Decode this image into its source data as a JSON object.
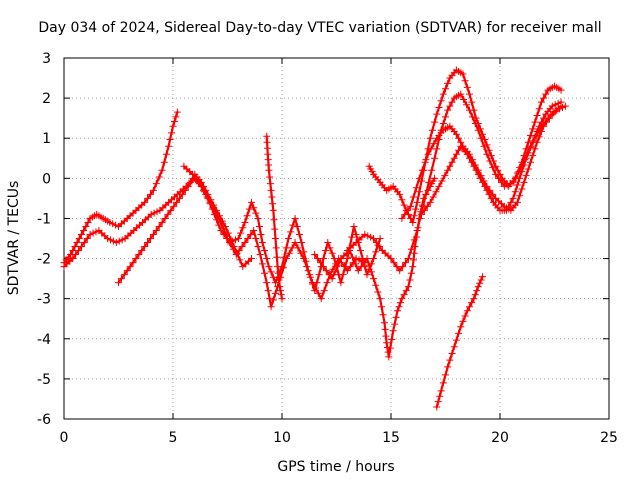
{
  "chart_data": {
    "type": "scatter",
    "title": "Day 034 of 2024, Sidereal Day-to-day VTEC variation (SDTVAR) for receiver mall",
    "xlabel": "GPS time / hours",
    "ylabel": "SDTVAR / TECUs",
    "xlim": [
      0,
      25
    ],
    "ylim": [
      -6,
      3
    ],
    "xticks": [
      "0",
      "5",
      "10",
      "15",
      "20",
      "25"
    ],
    "yticks": [
      "-6",
      "-5",
      "-4",
      "-3",
      "-2",
      "-1",
      "0",
      "1",
      "2",
      "3"
    ],
    "grid": true,
    "marker": "+",
    "color": "#ff0000",
    "series": [
      {
        "values": [
          [
            0.0,
            -2.1
          ],
          [
            0.3,
            -1.9
          ],
          [
            0.6,
            -1.6
          ],
          [
            0.9,
            -1.3
          ],
          [
            1.2,
            -1.0
          ],
          [
            1.5,
            -0.9
          ],
          [
            1.8,
            -1.0
          ],
          [
            2.1,
            -1.1
          ],
          [
            2.5,
            -1.2
          ],
          [
            2.9,
            -1.0
          ],
          [
            3.3,
            -0.8
          ],
          [
            3.7,
            -0.6
          ],
          [
            4.1,
            -0.3
          ],
          [
            4.5,
            0.2
          ],
          [
            4.8,
            0.8
          ],
          [
            5.0,
            1.3
          ],
          [
            5.2,
            1.65
          ]
        ]
      },
      {
        "values": [
          [
            0.0,
            -2.2
          ],
          [
            0.4,
            -2.0
          ],
          [
            0.8,
            -1.7
          ],
          [
            1.2,
            -1.4
          ],
          [
            1.6,
            -1.3
          ],
          [
            2.0,
            -1.5
          ],
          [
            2.4,
            -1.6
          ],
          [
            2.8,
            -1.5
          ],
          [
            3.2,
            -1.3
          ],
          [
            3.6,
            -1.1
          ],
          [
            4.0,
            -0.9
          ],
          [
            4.4,
            -0.8
          ],
          [
            4.8,
            -0.6
          ],
          [
            5.2,
            -0.4
          ],
          [
            5.6,
            -0.2
          ],
          [
            6.0,
            0.0
          ],
          [
            6.3,
            -0.2
          ],
          [
            6.6,
            -0.5
          ],
          [
            6.9,
            -0.9
          ],
          [
            7.2,
            -1.3
          ],
          [
            7.6,
            -1.6
          ],
          [
            8.0,
            -1.5
          ]
        ]
      },
      {
        "values": [
          [
            2.5,
            -2.6
          ],
          [
            2.9,
            -2.3
          ],
          [
            3.3,
            -2.0
          ],
          [
            3.7,
            -1.7
          ],
          [
            4.1,
            -1.4
          ],
          [
            4.5,
            -1.1
          ],
          [
            4.9,
            -0.8
          ],
          [
            5.3,
            -0.5
          ],
          [
            5.7,
            -0.2
          ],
          [
            6.0,
            0.1
          ],
          [
            6.3,
            -0.1
          ],
          [
            6.6,
            -0.4
          ],
          [
            7.0,
            -0.8
          ],
          [
            7.4,
            -1.2
          ],
          [
            7.8,
            -1.7
          ],
          [
            8.2,
            -2.2
          ],
          [
            8.6,
            -2.0
          ]
        ]
      },
      {
        "values": [
          [
            5.5,
            0.3
          ],
          [
            5.9,
            0.1
          ],
          [
            6.3,
            -0.2
          ],
          [
            6.7,
            -0.6
          ],
          [
            7.1,
            -1.0
          ],
          [
            7.5,
            -1.5
          ],
          [
            7.9,
            -1.9
          ],
          [
            8.3,
            -1.6
          ],
          [
            8.7,
            -1.3
          ],
          [
            9.0,
            -1.9
          ],
          [
            9.3,
            -2.6
          ],
          [
            9.5,
            -3.2
          ],
          [
            9.8,
            -2.7
          ],
          [
            10.2,
            -2.0
          ],
          [
            10.6,
            -1.6
          ],
          [
            11.0,
            -2.0
          ],
          [
            11.4,
            -2.6
          ],
          [
            11.8,
            -3.0
          ],
          [
            12.2,
            -2.4
          ],
          [
            12.6,
            -2.0
          ],
          [
            13.0,
            -2.3
          ],
          [
            13.4,
            -2.0
          ],
          [
            13.8,
            -2.1
          ]
        ]
      },
      {
        "values": [
          [
            8.0,
            -1.5
          ],
          [
            8.3,
            -1.1
          ],
          [
            8.6,
            -0.6
          ],
          [
            8.9,
            -1.0
          ],
          [
            9.1,
            -1.6
          ],
          [
            9.4,
            -2.2
          ],
          [
            9.7,
            -2.6
          ],
          [
            10.0,
            -2.2
          ],
          [
            10.3,
            -1.5
          ],
          [
            10.6,
            -1.0
          ],
          [
            10.9,
            -1.6
          ],
          [
            11.2,
            -2.3
          ],
          [
            11.5,
            -2.8
          ],
          [
            11.8,
            -2.2
          ],
          [
            12.1,
            -1.6
          ],
          [
            12.4,
            -2.0
          ],
          [
            12.7,
            -2.6
          ],
          [
            13.0,
            -2.0
          ],
          [
            13.3,
            -1.2
          ],
          [
            13.6,
            -1.8
          ],
          [
            13.9,
            -2.4
          ],
          [
            14.2,
            -2.0
          ],
          [
            14.5,
            -1.5
          ]
        ]
      },
      {
        "values": [
          [
            9.3,
            1.05
          ],
          [
            9.35,
            0.6
          ],
          [
            9.4,
            0.2
          ],
          [
            9.5,
            -0.3
          ],
          [
            9.6,
            -0.8
          ],
          [
            9.7,
            -1.5
          ],
          [
            9.8,
            -2.2
          ],
          [
            9.9,
            -2.7
          ],
          [
            10.0,
            -3.0
          ]
        ]
      },
      {
        "values": [
          [
            11.5,
            -1.9
          ],
          [
            11.9,
            -2.2
          ],
          [
            12.3,
            -2.5
          ],
          [
            12.7,
            -2.0
          ],
          [
            13.1,
            -1.8
          ],
          [
            13.5,
            -2.3
          ],
          [
            13.9,
            -2.0
          ],
          [
            14.2,
            -2.5
          ],
          [
            14.5,
            -3.0
          ],
          [
            14.7,
            -3.6
          ],
          [
            14.8,
            -4.1
          ],
          [
            14.9,
            -4.45
          ],
          [
            15.1,
            -3.8
          ],
          [
            15.3,
            -3.3
          ],
          [
            15.5,
            -3.0
          ],
          [
            15.8,
            -2.7
          ],
          [
            16.0,
            -2.2
          ],
          [
            16.1,
            -1.7
          ],
          [
            16.3,
            -1.0
          ],
          [
            16.5,
            -0.5
          ],
          [
            16.8,
            -0.2
          ],
          [
            17.0,
            0.0
          ]
        ]
      },
      {
        "values": [
          [
            13.0,
            -1.8
          ],
          [
            13.4,
            -1.6
          ],
          [
            13.8,
            -1.4
          ],
          [
            14.2,
            -1.5
          ],
          [
            14.6,
            -1.8
          ],
          [
            15.0,
            -2.0
          ],
          [
            15.4,
            -2.3
          ],
          [
            15.8,
            -2.0
          ],
          [
            16.2,
            -1.3
          ],
          [
            16.6,
            -0.4
          ],
          [
            17.0,
            0.5
          ],
          [
            17.3,
            1.2
          ],
          [
            17.6,
            1.7
          ],
          [
            17.9,
            2.0
          ],
          [
            18.2,
            2.1
          ],
          [
            18.6,
            1.7
          ],
          [
            19.0,
            1.2
          ],
          [
            19.4,
            0.6
          ],
          [
            19.8,
            0.1
          ],
          [
            20.2,
            -0.2
          ],
          [
            20.6,
            -0.1
          ],
          [
            21.0,
            0.3
          ],
          [
            21.4,
            0.8
          ],
          [
            21.8,
            1.2
          ],
          [
            22.2,
            1.5
          ],
          [
            22.6,
            1.7
          ],
          [
            23.0,
            1.8
          ]
        ]
      },
      {
        "values": [
          [
            14.0,
            0.3
          ],
          [
            14.2,
            0.1
          ],
          [
            14.5,
            -0.1
          ],
          [
            14.8,
            -0.3
          ],
          [
            15.1,
            -0.2
          ],
          [
            15.4,
            -0.4
          ],
          [
            15.7,
            -0.8
          ],
          [
            16.0,
            -1.1
          ],
          [
            16.2,
            -0.6
          ],
          [
            16.5,
            0.2
          ],
          [
            16.8,
            1.0
          ],
          [
            17.1,
            1.6
          ],
          [
            17.4,
            2.1
          ],
          [
            17.7,
            2.5
          ],
          [
            18.0,
            2.7
          ],
          [
            18.3,
            2.6
          ],
          [
            18.6,
            2.1
          ],
          [
            18.9,
            1.5
          ],
          [
            19.2,
            1.1
          ],
          [
            19.5,
            0.7
          ],
          [
            19.8,
            0.3
          ],
          [
            20.1,
            0.0
          ],
          [
            20.4,
            -0.2
          ],
          [
            20.7,
            0.0
          ],
          [
            21.0,
            0.4
          ],
          [
            21.3,
            0.9
          ],
          [
            21.6,
            1.4
          ],
          [
            21.9,
            1.9
          ],
          [
            22.2,
            2.2
          ],
          [
            22.5,
            2.3
          ],
          [
            22.8,
            2.2
          ]
        ]
      },
      {
        "values": [
          [
            15.5,
            -1.0
          ],
          [
            15.9,
            -0.7
          ],
          [
            16.3,
            0.0
          ],
          [
            16.7,
            0.6
          ],
          [
            17.1,
            1.0
          ],
          [
            17.4,
            1.2
          ],
          [
            17.7,
            1.3
          ],
          [
            18.0,
            1.1
          ],
          [
            18.3,
            0.8
          ],
          [
            18.6,
            0.6
          ],
          [
            19.0,
            0.2
          ],
          [
            19.4,
            -0.2
          ],
          [
            19.8,
            -0.5
          ],
          [
            20.2,
            -0.7
          ],
          [
            20.5,
            -0.8
          ],
          [
            20.8,
            -0.6
          ],
          [
            21.1,
            -0.1
          ],
          [
            21.4,
            0.4
          ],
          [
            21.7,
            0.9
          ],
          [
            22.0,
            1.3
          ],
          [
            22.4,
            1.6
          ],
          [
            22.8,
            1.8
          ]
        ]
      },
      {
        "values": [
          [
            16.4,
            -0.9
          ],
          [
            16.8,
            -0.6
          ],
          [
            17.2,
            -0.2
          ],
          [
            17.6,
            0.2
          ],
          [
            17.9,
            0.5
          ],
          [
            18.2,
            0.8
          ],
          [
            18.5,
            0.6
          ],
          [
            18.8,
            0.3
          ],
          [
            19.1,
            0.0
          ],
          [
            19.4,
            -0.3
          ],
          [
            19.7,
            -0.6
          ],
          [
            20.0,
            -0.8
          ],
          [
            20.3,
            -0.8
          ],
          [
            20.6,
            -0.5
          ],
          [
            20.9,
            0.0
          ],
          [
            21.2,
            0.5
          ],
          [
            21.5,
            0.9
          ],
          [
            21.8,
            1.3
          ],
          [
            22.1,
            1.6
          ],
          [
            22.4,
            1.8
          ],
          [
            22.8,
            1.9
          ]
        ]
      },
      {
        "values": [
          [
            17.1,
            -5.7
          ],
          [
            17.3,
            -5.3
          ],
          [
            17.6,
            -4.7
          ],
          [
            17.9,
            -4.2
          ],
          [
            18.2,
            -3.7
          ],
          [
            18.5,
            -3.3
          ],
          [
            18.8,
            -3.0
          ],
          [
            19.0,
            -2.7
          ],
          [
            19.2,
            -2.45
          ]
        ]
      }
    ]
  }
}
